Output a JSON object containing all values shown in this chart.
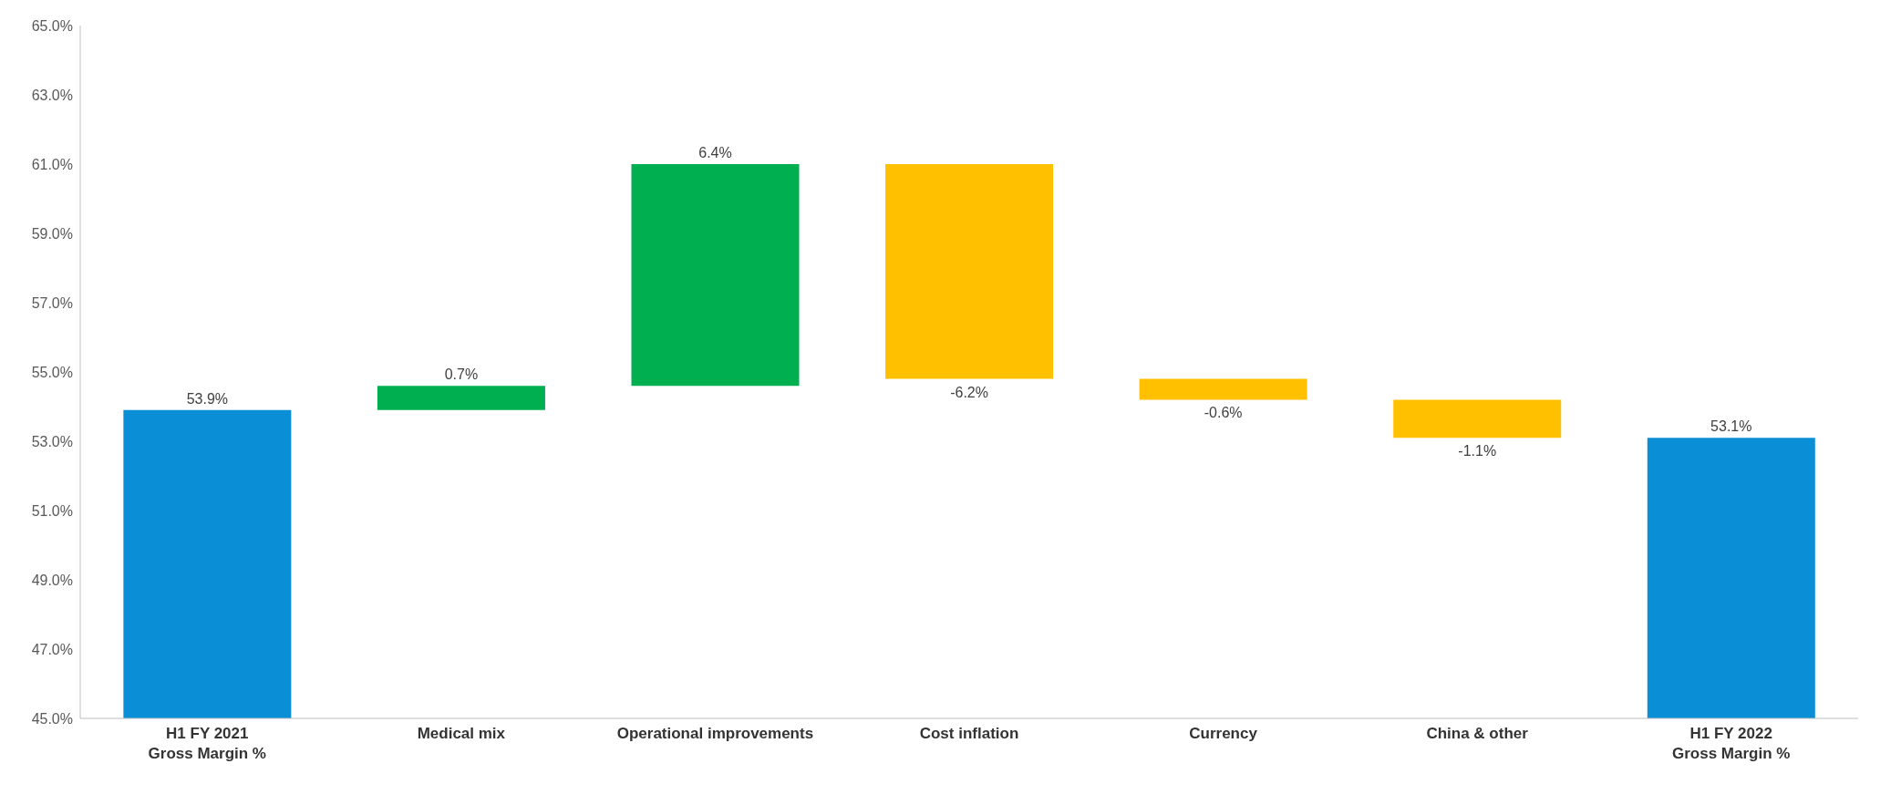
{
  "chart_data": {
    "type": "bar",
    "categories": [
      "H1 FY 2021\nGross Margin %",
      "Medical mix",
      "Operational improvements",
      "Cost inflation",
      "Currency",
      "China & other",
      "H1 FY 2022\nGross Margin %"
    ],
    "values": [
      53.9,
      0.7,
      6.4,
      -6.2,
      -0.6,
      -1.1,
      53.1
    ],
    "base": [
      0,
      53.9,
      54.6,
      61.0,
      54.8,
      54.2,
      0
    ],
    "colors": [
      "#0a8fd6",
      "#00b050",
      "#00b050",
      "#ffc000",
      "#ffc000",
      "#ffc000",
      "#0a8fd6"
    ],
    "value_labels": [
      "53.9%",
      "0.7%",
      "6.4%",
      "-6.2%",
      "-0.6%",
      "-1.1%",
      "53.1%"
    ],
    "ylim": [
      45,
      65
    ],
    "yticks": [
      {
        "value": 45,
        "label": "45.0%"
      },
      {
        "value": 47,
        "label": "47.0%"
      },
      {
        "value": 49,
        "label": "49.0%"
      },
      {
        "value": 51,
        "label": "51.0%"
      },
      {
        "value": 53,
        "label": "53.0%"
      },
      {
        "value": 55,
        "label": "55.0%"
      },
      {
        "value": 57,
        "label": "57.0%"
      },
      {
        "value": 59,
        "label": "59.0%"
      },
      {
        "value": 61,
        "label": "61.0%"
      },
      {
        "value": 63,
        "label": "63.0%"
      },
      {
        "value": 65,
        "label": "65.0%"
      }
    ],
    "grid": false,
    "legend": false
  }
}
